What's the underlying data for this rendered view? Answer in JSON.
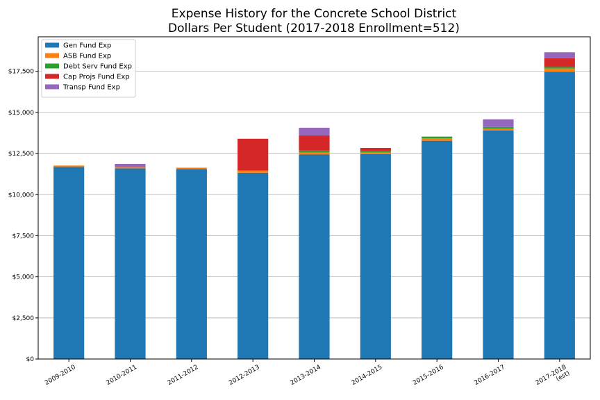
{
  "chart_data": {
    "type": "bar",
    "stacked": true,
    "title": "Expense History for the Concrete School District",
    "subtitle": "Dollars Per Student (2017-2018 Enrollment=512)",
    "xlabel": "",
    "ylabel": "",
    "ylim": [
      0,
      19600
    ],
    "grid": "horizontal",
    "legend_position": "top-left",
    "categories": [
      [
        "2009-2010"
      ],
      [
        "2010-2011"
      ],
      [
        "2011-2012"
      ],
      [
        "2012-2013"
      ],
      [
        "2013-2014"
      ],
      [
        "2014-2015"
      ],
      [
        "2015-2016"
      ],
      [
        "2016-2017"
      ],
      [
        "2017-2018",
        "(est)"
      ]
    ],
    "y_ticks": [
      {
        "value": 0,
        "label": "$0"
      },
      {
        "value": 2500,
        "label": "$2,500"
      },
      {
        "value": 5000,
        "label": "$5,000"
      },
      {
        "value": 7500,
        "label": "$7,500"
      },
      {
        "value": 10000,
        "label": "$10,000"
      },
      {
        "value": 12500,
        "label": "$12,500"
      },
      {
        "value": 15000,
        "label": "$15,000"
      },
      {
        "value": 17500,
        "label": "$17,500"
      }
    ],
    "series": [
      {
        "name": "Gen Fund Exp",
        "color": "#1f77b4",
        "values": [
          11680,
          11600,
          11550,
          11330,
          12440,
          12470,
          13280,
          13900,
          17470
        ]
      },
      {
        "name": "ASB Fund Exp",
        "color": "#ff7f0e",
        "values": [
          90,
          80,
          90,
          130,
          130,
          100,
          140,
          110,
          200
        ]
      },
      {
        "name": "Debt Serv Fund Exp",
        "color": "#2ca02c",
        "values": [
          0,
          0,
          0,
          0,
          110,
          100,
          110,
          110,
          100
        ]
      },
      {
        "name": "Cap Projs Fund Exp",
        "color": "#d62728",
        "values": [
          0,
          0,
          0,
          1940,
          930,
          170,
          0,
          0,
          530
        ]
      },
      {
        "name": "Transp Fund Exp",
        "color": "#9467bd",
        "values": [
          0,
          190,
          0,
          0,
          460,
          0,
          0,
          460,
          360
        ]
      }
    ]
  }
}
